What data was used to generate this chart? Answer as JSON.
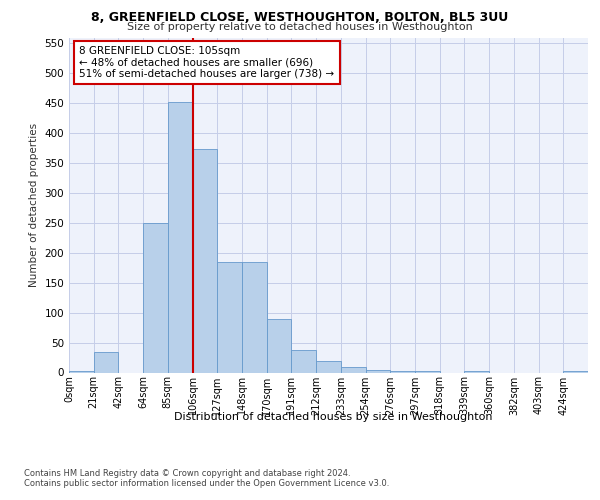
{
  "title1": "8, GREENFIELD CLOSE, WESTHOUGHTON, BOLTON, BL5 3UU",
  "title2": "Size of property relative to detached houses in Westhoughton",
  "xlabel": "Distribution of detached houses by size in Westhoughton",
  "ylabel": "Number of detached properties",
  "categories": [
    "0sqm",
    "21sqm",
    "42sqm",
    "64sqm",
    "85sqm",
    "106sqm",
    "127sqm",
    "148sqm",
    "170sqm",
    "191sqm",
    "212sqm",
    "233sqm",
    "254sqm",
    "276sqm",
    "297sqm",
    "318sqm",
    "339sqm",
    "360sqm",
    "382sqm",
    "403sqm",
    "424sqm"
  ],
  "values": [
    2,
    35,
    0,
    250,
    453,
    373,
    185,
    185,
    90,
    37,
    20,
    10,
    5,
    3,
    2,
    0,
    2,
    0,
    0,
    0,
    2
  ],
  "bar_color": "#b8d0ea",
  "bar_edge_color": "#6699cc",
  "vline_x": 5.0,
  "vline_color": "#cc0000",
  "annotation_text": "8 GREENFIELD CLOSE: 105sqm\n← 48% of detached houses are smaller (696)\n51% of semi-detached houses are larger (738) →",
  "annotation_box_color": "#ffffff",
  "annotation_box_edge_color": "#cc0000",
  "ylim": [
    0,
    560
  ],
  "yticks": [
    0,
    50,
    100,
    150,
    200,
    250,
    300,
    350,
    400,
    450,
    500,
    550
  ],
  "footnote1": "Contains HM Land Registry data © Crown copyright and database right 2024.",
  "footnote2": "Contains public sector information licensed under the Open Government Licence v3.0.",
  "bg_color": "#eef2fb",
  "grid_color": "#c5cde8"
}
